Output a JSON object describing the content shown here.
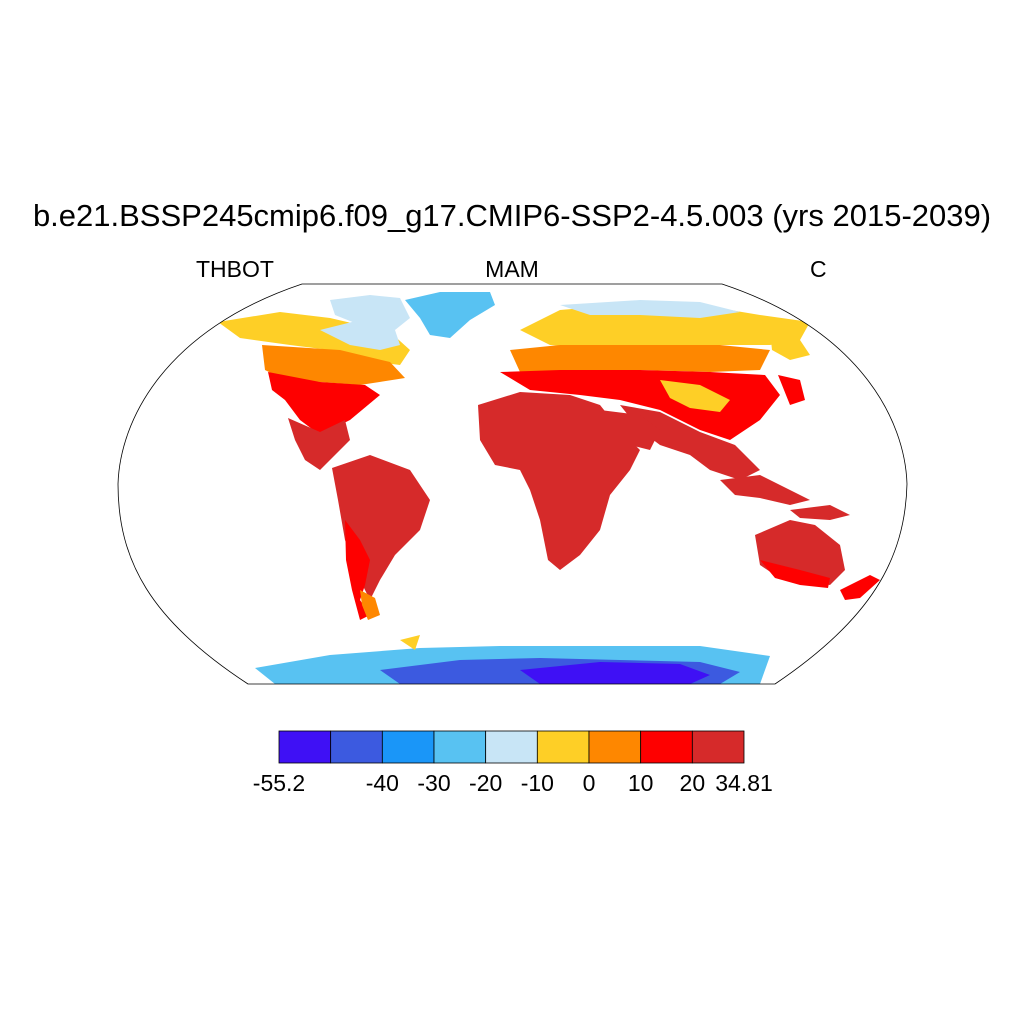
{
  "title": "b.e21.BSSP245cmip6.f09_g17.CMIP6-SSP2-4.5.003 (yrs 2015-2039)",
  "left_string": "THBOT",
  "center_string": "MAM",
  "right_string": "C",
  "colorbar": {
    "colors": [
      "#3f10f5",
      "#3c5ae0",
      "#1a96f8",
      "#58c2f2",
      "#c8e5f6",
      "#fecf26",
      "#fe8700",
      "#fe0000",
      "#d62a2a"
    ],
    "labels": [
      "-55.2",
      "-40",
      "-30",
      "-20",
      "-10",
      "0",
      "10",
      "20",
      "34.81"
    ]
  },
  "map": {
    "projection": "Robinson",
    "continent_fill_levels": {
      "greenland": "#58c2f2",
      "antarctica_interior": "#3f10f5",
      "antarctica_coast": "#58c2f2",
      "tropics": "#d62a2a",
      "subtropics": "#fe0000",
      "midlatitudes": "#fe8700",
      "subarctic": "#fecf26",
      "arctic_coast": "#c8e5f6"
    }
  }
}
